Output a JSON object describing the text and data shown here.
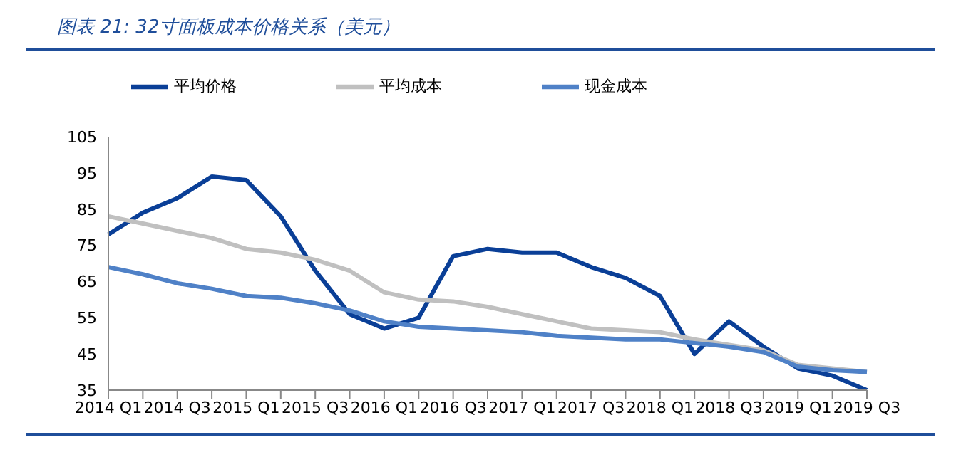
{
  "chart_data": {
    "type": "line",
    "title": "图表 21: 32寸面板成本价格关系（美元）",
    "categories": [
      "2014 Q1",
      null,
      "2014 Q3",
      null,
      "2015 Q1",
      null,
      "2015 Q3",
      null,
      "2016 Q1",
      null,
      "2016 Q3",
      null,
      "2017 Q1",
      null,
      "2017 Q3",
      null,
      "2018 Q1",
      null,
      "2018 Q3",
      null,
      "2019 Q1",
      null,
      "2019 Q3"
    ],
    "series": [
      {
        "name": "平均价格",
        "color": "#0a3f97",
        "values": [
          78,
          84,
          88,
          94,
          93,
          83,
          68,
          56,
          52,
          55,
          72,
          74,
          73,
          73,
          69,
          66,
          61,
          45,
          54,
          47,
          41,
          39,
          35
        ]
      },
      {
        "name": "平均成本",
        "color": "#c0c0c0",
        "values": [
          83,
          81,
          79,
          77,
          74,
          73,
          71,
          68,
          62,
          60,
          59.5,
          58,
          56,
          54,
          52,
          51.5,
          51,
          49,
          47.5,
          46,
          42,
          41,
          40
        ]
      },
      {
        "name": "现金成本",
        "color": "#4f81c7",
        "values": [
          69,
          67,
          64.5,
          63,
          61,
          60.5,
          59,
          57,
          54,
          52.5,
          52,
          51.5,
          51,
          50,
          49.5,
          49,
          49,
          48,
          47,
          45.5,
          41.5,
          40.5,
          40
        ]
      }
    ],
    "ylim": [
      35,
      105
    ],
    "yticks": [
      35,
      45,
      55,
      65,
      75,
      85,
      95,
      105
    ],
    "grid": false,
    "legend": "top",
    "marker": "none",
    "line_style": "solid"
  }
}
